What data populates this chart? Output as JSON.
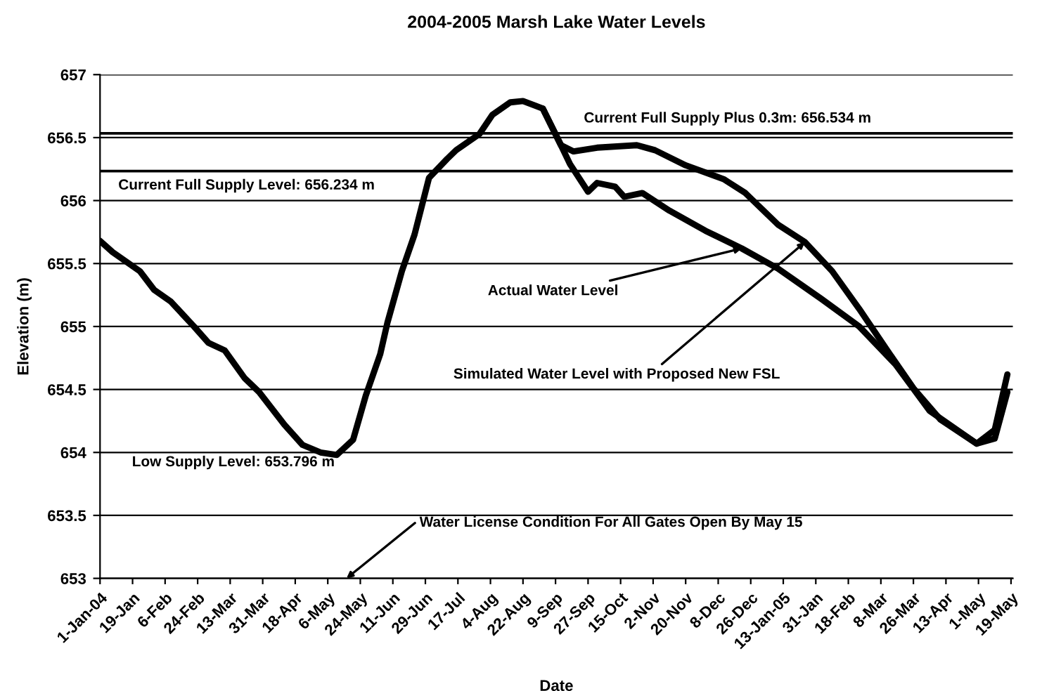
{
  "chart_data": {
    "type": "line",
    "title": "2004-2005 Marsh Lake Water Levels",
    "xlabel": "Date",
    "ylabel": "Elevation (m)",
    "series": [
      {
        "color": "#000000",
        "x": [
          "2004-01-01",
          "2004-01-08",
          "2004-01-23",
          "2004-01-31",
          "2004-02-09",
          "2004-02-22",
          "2004-03-01",
          "2004-03-10",
          "2004-03-21",
          "2004-03-29",
          "2004-04-12",
          "2004-04-22",
          "2004-05-02",
          "2004-05-11",
          "2004-05-20",
          "2004-05-24",
          "2004-05-27",
          "2004-06-04",
          "2004-06-08",
          "2004-06-16",
          "2004-06-23",
          "2004-07-01",
          "2004-07-11",
          "2004-07-16",
          "2004-07-29",
          "2004-08-05",
          "2004-08-15",
          "2004-08-22",
          "2004-09-02",
          "2004-09-12",
          "2004-09-17",
          "2004-09-27",
          "2004-10-02",
          "2004-10-12",
          "2004-10-17",
          "2004-10-27",
          "2004-11-11",
          "2004-12-01",
          "2004-12-21",
          "2005-01-10",
          "2005-02-03",
          "2005-02-24",
          "2005-03-16",
          "2005-04-04",
          "2005-04-30",
          "2005-05-10",
          "2005-05-17"
        ],
        "values": [
          655.68,
          655.59,
          655.44,
          655.29,
          655.2,
          655.0,
          654.87,
          654.81,
          654.59,
          654.48,
          654.22,
          654.06,
          654.0,
          653.98,
          654.1,
          654.3,
          654.45,
          654.78,
          655.03,
          655.44,
          655.73,
          656.18,
          656.33,
          656.4,
          656.53,
          656.68,
          656.78,
          656.79,
          656.73,
          656.44,
          656.29,
          656.07,
          656.14,
          656.11,
          656.03,
          656.06,
          655.92,
          655.76,
          655.62,
          655.46,
          655.22,
          655.0,
          654.7,
          654.33,
          654.07,
          654.11,
          654.48
        ]
      },
      {
        "color": "#000000",
        "x": [
          "2004-09-02",
          "2004-09-12",
          "2004-09-19",
          "2004-10-02",
          "2004-10-24",
          "2004-11-03",
          "2004-11-20",
          "2004-12-11",
          "2004-12-23",
          "2005-01-10",
          "2005-01-25",
          "2005-02-09",
          "2005-02-24",
          "2005-03-13",
          "2005-03-26",
          "2005-04-10",
          "2005-04-30",
          "2005-05-10",
          "2005-05-17"
        ],
        "values": [
          656.73,
          656.44,
          656.39,
          656.42,
          656.44,
          656.4,
          656.28,
          656.17,
          656.06,
          655.81,
          655.67,
          655.44,
          655.14,
          654.78,
          654.51,
          654.26,
          654.07,
          654.18,
          654.62
        ]
      }
    ],
    "ref_lines": [
      {
        "axis": "y",
        "value": 656.234,
        "label": "Current Full Supply Level: 656.234 m",
        "color": "#000000"
      },
      {
        "axis": "y",
        "value": 656.534,
        "label": "Current Full Supply Plus 0.3m: 656.534 m",
        "color": "#000000"
      }
    ],
    "annotations": [
      "Low Supply Level: 653.796 m",
      "Water License Condition For All Gates Open By May 15",
      {
        "text": "Actual Water Level",
        "x": "2004-12-21",
        "y": 655.62
      },
      {
        "text": "Simulated Water Level with Proposed New FSL",
        "x": "2005-01-25",
        "y": 655.67
      }
    ],
    "xlim": [
      "2004-01-01",
      "2005-05-20"
    ],
    "xticks": [
      {
        "value": "2004-01-01",
        "label": "1-Jan-04"
      },
      {
        "value": "2004-01-19",
        "label": "19-Jan"
      },
      {
        "value": "2004-02-06",
        "label": "6-Feb"
      },
      {
        "value": "2004-02-24",
        "label": "24-Feb"
      },
      {
        "value": "2004-03-13",
        "label": "13-Mar"
      },
      {
        "value": "2004-03-31",
        "label": "31-Mar"
      },
      {
        "value": "2004-04-18",
        "label": "18-Apr"
      },
      {
        "value": "2004-05-06",
        "label": "6-May"
      },
      {
        "value": "2004-05-24",
        "label": "24-May"
      },
      {
        "value": "2004-06-11",
        "label": "11-Jun"
      },
      {
        "value": "2004-06-29",
        "label": "29-Jun"
      },
      {
        "value": "2004-07-17",
        "label": "17-Jul"
      },
      {
        "value": "2004-08-04",
        "label": "4-Aug"
      },
      {
        "value": "2004-08-22",
        "label": "22-Aug"
      },
      {
        "value": "2004-09-09",
        "label": "9-Sep"
      },
      {
        "value": "2004-09-27",
        "label": "27-Sep"
      },
      {
        "value": "2004-10-15",
        "label": "15-Oct"
      },
      {
        "value": "2004-11-02",
        "label": "2-Nov"
      },
      {
        "value": "2004-11-20",
        "label": "20-Nov"
      },
      {
        "value": "2004-12-08",
        "label": "8-Dec"
      },
      {
        "value": "2004-12-26",
        "label": "26-Dec"
      },
      {
        "value": "2005-01-13",
        "label": "13-Jan-05"
      },
      {
        "value": "2005-01-31",
        "label": "31-Jan"
      },
      {
        "value": "2005-02-18",
        "label": "18-Feb"
      },
      {
        "value": "2005-03-08",
        "label": "8-Mar"
      },
      {
        "value": "2005-03-26",
        "label": "26-Mar"
      },
      {
        "value": "2005-04-13",
        "label": "13-Apr"
      },
      {
        "value": "2005-05-01",
        "label": "1-May"
      },
      {
        "value": "2005-05-19",
        "label": "19-May"
      }
    ],
    "ylim": [
      653,
      657
    ],
    "yticks": [
      653,
      653.5,
      654,
      654.5,
      655,
      655.5,
      656,
      656.5,
      657
    ],
    "grid": "y",
    "legend": false,
    "marker": "none",
    "line_style": "solid"
  }
}
